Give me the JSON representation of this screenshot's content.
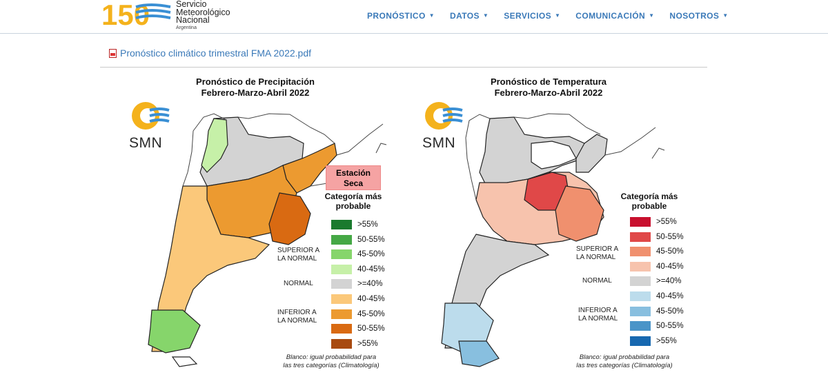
{
  "header": {
    "logo_number": "150",
    "logo_lines": [
      "Servicio",
      "Meteorológico",
      "Nacional",
      "Argentina"
    ],
    "nav": [
      {
        "label": "PRONÓSTICO"
      },
      {
        "label": "DATOS"
      },
      {
        "label": "SERVICIOS"
      },
      {
        "label": "COMUNICACIÓN"
      },
      {
        "label": "NOSOTROS"
      }
    ]
  },
  "content": {
    "pdf_link": "Pronóstico climático trimestral FMA 2022.pdf"
  },
  "colors": {
    "nav_link": "#3a79b8",
    "smn_orange": "#f4b21c",
    "smn_blue": "#3a8fd4"
  },
  "precip_map": {
    "title_line1": "Pronóstico de Precipitación",
    "title_line2": "Febrero-Marzo-Abril 2022",
    "logo_text": "SMN",
    "badge_line1": "Estación",
    "badge_line2": "Seca",
    "category_line1": "Categoría más",
    "category_line2": "probable",
    "groups": {
      "superior_1": "SUPERIOR A",
      "superior_2": "LA NORMAL",
      "normal": "NORMAL",
      "inferior_1": "INFERIOR A",
      "inferior_2": "LA NORMAL"
    },
    "legend": [
      {
        "label": ">55%",
        "color": "#1a7a2e"
      },
      {
        "label": "50-55%",
        "color": "#45a845"
      },
      {
        "label": "45-50%",
        "color": "#86d56b"
      },
      {
        "label": "40-45%",
        "color": "#c6f0a8"
      },
      {
        "label": ">=40%",
        "color": "#d3d3d3"
      },
      {
        "label": "40-45%",
        "color": "#fbc87a"
      },
      {
        "label": "45-50%",
        "color": "#ec9a30"
      },
      {
        "label": "50-55%",
        "color": "#d96a12"
      },
      {
        "label": ">55%",
        "color": "#a84a10"
      }
    ],
    "footnote_line1": "Blanco: igual probabilidad para",
    "footnote_line2": "las tres categorías (Climatología)"
  },
  "temp_map": {
    "title_line1": "Pronóstico de Temperatura",
    "title_line2": "Febrero-Marzo-Abril 2022",
    "logo_text": "SMN",
    "category_line1": "Categoría más",
    "category_line2": "probable",
    "groups": {
      "superior_1": "SUPERIOR A",
      "superior_2": "LA NORMAL",
      "normal": "NORMAL",
      "inferior_1": "INFERIOR A",
      "inferior_2": "LA NORMAL"
    },
    "legend": [
      {
        "label": ">55%",
        "color": "#c8102e"
      },
      {
        "label": "50-55%",
        "color": "#e04848"
      },
      {
        "label": "45-50%",
        "color": "#f0906e"
      },
      {
        "label": "40-45%",
        "color": "#f7c3ad"
      },
      {
        "label": ">=40%",
        "color": "#d3d3d3"
      },
      {
        "label": "40-45%",
        "color": "#bcdcec"
      },
      {
        "label": "45-50%",
        "color": "#88bfdf"
      },
      {
        "label": "50-55%",
        "color": "#4a94c8"
      },
      {
        "label": ">55%",
        "color": "#1768b0"
      }
    ],
    "footnote_line1": "Blanco: igual probabilidad para",
    "footnote_line2": "las tres categorías (Climatología)"
  }
}
